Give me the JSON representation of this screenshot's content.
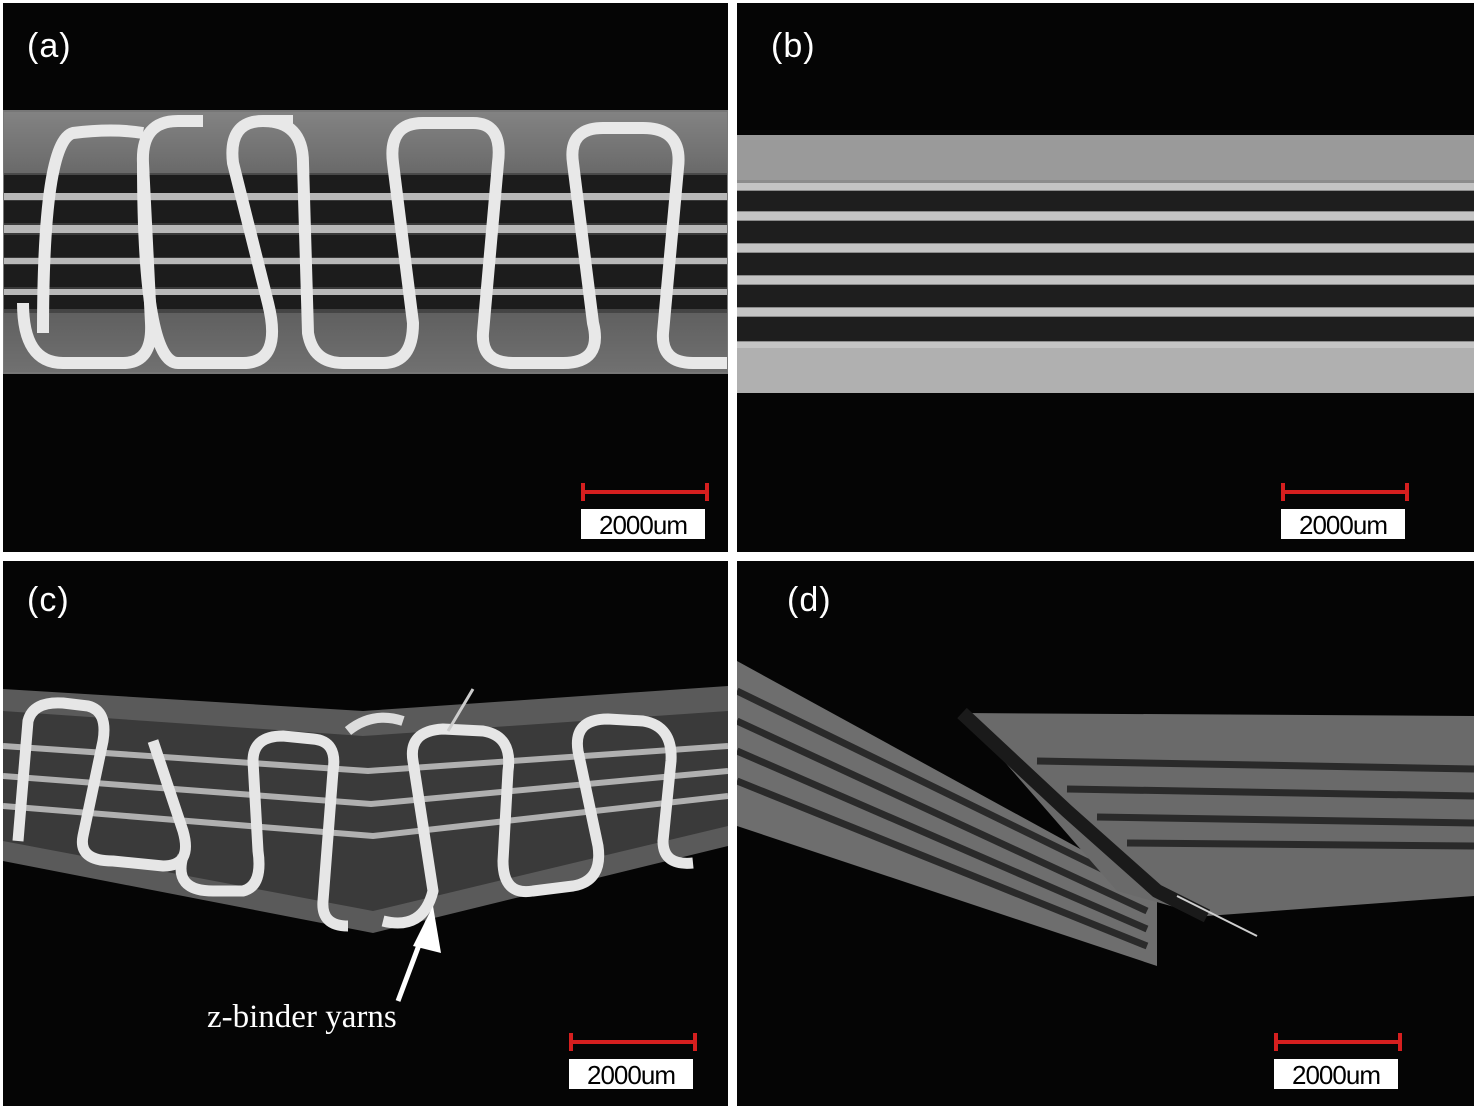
{
  "panels": {
    "a": {
      "label": "(a)",
      "scale": "2000um"
    },
    "b": {
      "label": "(b)",
      "scale": "2000um"
    },
    "c": {
      "label": "(c)",
      "scale": "2000um",
      "annotation": "z-binder yarns"
    },
    "d": {
      "label": "(d)",
      "scale": "2000um"
    }
  },
  "colors": {
    "background": "#050505",
    "separator": "#ffffff",
    "scale_bar": "#d61f1f",
    "yarn": "#e6e6e6",
    "laminate": "#a8a8a8"
  }
}
